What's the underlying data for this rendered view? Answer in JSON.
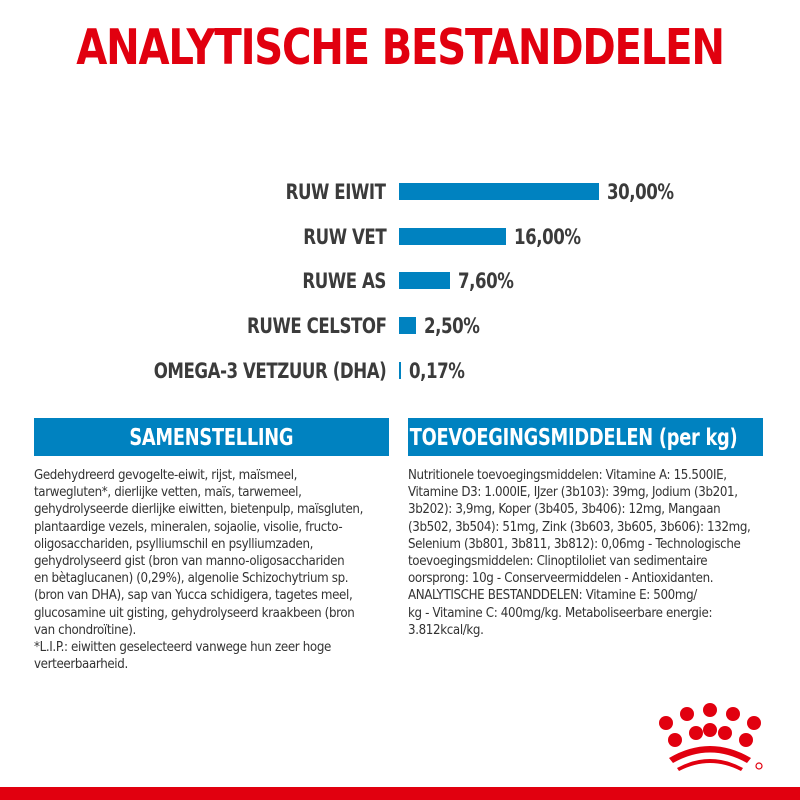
{
  "title": "ANALYTISCHE BESTANDDELEN",
  "colors": {
    "title_red": "#e1000f",
    "bar_blue": "#0082c0",
    "label_gray": "#3b3b3b",
    "header_bg": "#0082c0",
    "header_text": "#ffffff",
    "body_text": "#333333"
  },
  "chart_data": {
    "type": "bar",
    "orientation": "horizontal",
    "title": "ANALYTISCHE BESTANDDELEN",
    "categories": [
      "RUW EIWIT",
      "RUW VET",
      "RUWE AS",
      "RUWE CELSTOF",
      "OMEGA-3 VETZUUR (DHA)"
    ],
    "values": [
      30.0,
      16.0,
      7.6,
      2.5,
      0.17
    ],
    "value_labels": [
      "30,00%",
      "16,00%",
      "7,60%",
      "2,50%",
      "0,17%"
    ],
    "unit": "%",
    "xlabel": "",
    "ylabel": "",
    "xlim": [
      0,
      30
    ],
    "grid": false,
    "legend": null
  },
  "composition": {
    "header": "SAMENSTELLING",
    "lines": [
      "Gedehydreerd gevogelte-eiwit, rijst, maïsmeel,",
      "tarwegluten*, dierlijke vetten, maïs, tarwemeel,",
      "gehydrolyseerde dierlijke eiwitten, bietenpulp, maïsgluten,",
      "plantaardige vezels, mineralen, sojaolie, visolie, fructo-",
      "oligosacchariden, psylliumschil en psylliumzaden,",
      "gehydrolyseerd gist (bron van manno-oligosacchariden",
      "en bètaglucanen) (0,29%), algenolie Schizochytrium sp.",
      "(bron van DHA), sap van Yucca schidigera, tagetes meel,",
      "glucosamine uit gisting, gehydrolyseerd kraakbeen (bron",
      "van chondroïtine).",
      "*L.I.P.: eiwitten geselecteerd vanwege hun zeer hoge",
      "verteerbaarheid."
    ]
  },
  "additives": {
    "header": "TOEVOEGINGSMIDDELEN (per kg)",
    "lines": [
      "Nutritionele toevoegingsmiddelen: Vitamine A: 15.500IE,",
      "Vitamine D3: 1.000IE, IJzer (3b103): 39mg, Jodium (3b201,",
      "3b202): 3,9mg, Koper (3b405, 3b406): 12mg, Mangaan",
      "(3b502, 3b504): 51mg, Zink (3b603, 3b605, 3b606): 132mg,",
      "Selenium (3b801, 3b811, 3b812): 0,06mg - Technologische",
      "toevoegingsmiddelen: Clinoptiloliet van sedimentaire",
      "oorsprong: 10g - Conserveermiddelen - Antioxidanten.",
      "ANALYTISCHE BESTANDDELEN: Vitamine E: 500mg/",
      "kg - Vitamine C: 400mg/kg. Metaboliseerbare energie:",
      "3.812kcal/kg."
    ]
  },
  "logo": {
    "icon": "royal-canin-crown-icon",
    "registered_mark": "®"
  }
}
